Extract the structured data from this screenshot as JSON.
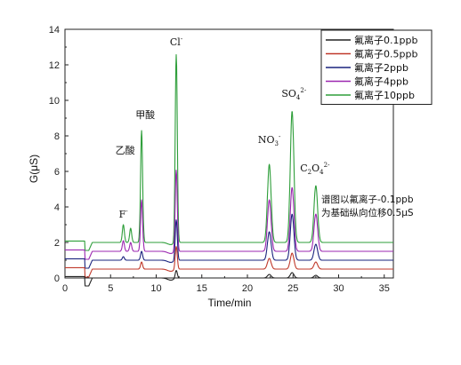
{
  "chart_data": {
    "type": "line",
    "xlabel": "Time/min",
    "ylabel": "G(μS)",
    "xlim": [
      0,
      36
    ],
    "ylim": [
      0,
      14
    ],
    "xticks": [
      0,
      5,
      10,
      15,
      20,
      25,
      30,
      35
    ],
    "yticks": [
      0,
      2,
      4,
      6,
      8,
      10,
      12,
      14
    ],
    "legend_placement": "top-right",
    "grid": false,
    "series": [
      {
        "name": "氟离子0.1ppb",
        "color": "#222222",
        "offset": 0.0,
        "peaks": [
          [
            12.2,
            0.45
          ],
          [
            22.4,
            0.2
          ],
          [
            24.9,
            0.3
          ],
          [
            27.5,
            0.15
          ]
        ]
      },
      {
        "name": "氟离子0.5ppb",
        "color": "#c0392b",
        "offset": 0.5,
        "peaks": [
          [
            8.4,
            0.4
          ],
          [
            12.2,
            1.3
          ],
          [
            22.4,
            0.6
          ],
          [
            24.9,
            0.9
          ],
          [
            27.5,
            0.4
          ]
        ]
      },
      {
        "name": "氟离子2ppb",
        "color": "#1a237e",
        "offset": 1.0,
        "peaks": [
          [
            6.4,
            0.2
          ],
          [
            8.4,
            0.5
          ],
          [
            12.2,
            2.3
          ],
          [
            22.4,
            1.6
          ],
          [
            24.9,
            2.6
          ],
          [
            27.5,
            0.9
          ]
        ]
      },
      {
        "name": "氟离子4ppb",
        "color": "#9b27b0",
        "offset": 1.5,
        "peaks": [
          [
            6.4,
            0.6
          ],
          [
            7.2,
            0.5
          ],
          [
            8.4,
            2.9
          ],
          [
            12.2,
            4.6
          ],
          [
            22.4,
            2.9
          ],
          [
            24.9,
            3.6
          ],
          [
            27.5,
            2.1
          ]
        ]
      },
      {
        "name": "氟离子10ppb",
        "color": "#2e9e3a",
        "offset": 2.0,
        "peaks": [
          [
            6.4,
            1.0
          ],
          [
            7.2,
            0.8
          ],
          [
            8.4,
            6.3
          ],
          [
            12.2,
            10.6
          ],
          [
            22.4,
            4.4
          ],
          [
            24.9,
            7.4
          ],
          [
            27.5,
            3.2
          ]
        ]
      }
    ],
    "annotations": [
      {
        "id": "F",
        "text": "F",
        "sup": "-",
        "x": 6.4,
        "y": 3.4
      },
      {
        "id": "acetic",
        "text": "乙酸",
        "x": 6.6,
        "y": 7.0
      },
      {
        "id": "formic",
        "text": "甲酸",
        "x": 8.8,
        "y": 9.0
      },
      {
        "id": "Cl",
        "text": "Cl",
        "sup": "-",
        "x": 12.2,
        "y": 13.1
      },
      {
        "id": "NO3",
        "text": "NO",
        "sub": "3",
        "sup": "-",
        "x": 22.4,
        "y": 7.6
      },
      {
        "id": "SO4",
        "text": "SO",
        "sub": "4",
        "sup": "2-",
        "x": 25.1,
        "y": 10.2
      },
      {
        "id": "C2O4",
        "text": "C",
        "sub": "2",
        "text2": "O",
        "sub2": "4",
        "sup": "2-",
        "x": 27.4,
        "y": 6.0
      }
    ],
    "note_lines": [
      "谱图以氟离子-0.1ppb",
      "为基础纵向位移0.5μS"
    ]
  }
}
